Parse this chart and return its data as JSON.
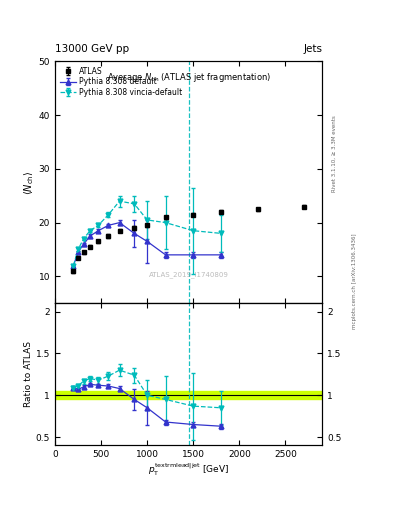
{
  "title_top": "13000 GeV pp",
  "title_right": "Jets",
  "plot_title": "Average N_{ch} (ATLAS jet fragmentation)",
  "ylabel_main": "<N_{ch}>",
  "ylabel_ratio": "Ratio to ATLAS",
  "xlabel": "p_{T}^{textrm{lead|jet}} [GeV]",
  "right_label1": "Rivet 3.1.10, ≥ 3.3M events",
  "right_label2": "mcplots.cern.ch [arXiv:1306.3436]",
  "watermark": "ATLAS_2019_I1740809",
  "vline_x": 1450,
  "atlas_x": [
    200,
    250,
    310,
    380,
    470,
    580,
    700,
    860,
    1000,
    1200,
    1500,
    1800,
    2200,
    2700
  ],
  "atlas_y": [
    11.0,
    13.5,
    14.5,
    15.5,
    16.5,
    17.5,
    18.5,
    19.0,
    19.5,
    21.0,
    21.5,
    22.0,
    22.5,
    23.0
  ],
  "atlas_yerr": [
    0.3,
    0.3,
    0.3,
    0.3,
    0.3,
    0.3,
    0.3,
    0.3,
    0.3,
    0.3,
    0.3,
    0.3,
    0.3,
    0.3
  ],
  "pythia_def_x": [
    200,
    250,
    310,
    380,
    470,
    580,
    700,
    860,
    1000,
    1200,
    1500,
    1800
  ],
  "pythia_def_y": [
    12.0,
    14.5,
    16.0,
    17.5,
    18.5,
    19.5,
    20.0,
    18.0,
    16.5,
    14.0,
    14.0,
    14.0
  ],
  "pythia_def_yerr": [
    0.2,
    0.2,
    0.3,
    0.3,
    0.3,
    0.3,
    0.5,
    2.5,
    4.0,
    0.5,
    0.5,
    0.5
  ],
  "vincia_x": [
    200,
    250,
    310,
    380,
    470,
    580,
    700,
    860,
    1000,
    1200,
    1500,
    1800
  ],
  "vincia_y": [
    12.0,
    15.0,
    17.0,
    18.5,
    19.5,
    21.5,
    24.0,
    23.5,
    20.5,
    20.0,
    18.5,
    18.0
  ],
  "vincia_yerr": [
    0.2,
    0.3,
    0.3,
    0.3,
    0.4,
    0.5,
    1.0,
    1.5,
    3.5,
    5.0,
    8.0,
    3.5
  ],
  "pythia_def_ratio_x": [
    200,
    250,
    310,
    380,
    470,
    580,
    700,
    860,
    1000,
    1200,
    1500,
    1800
  ],
  "pythia_def_ratio_y": [
    1.09,
    1.07,
    1.1,
    1.13,
    1.12,
    1.11,
    1.08,
    0.95,
    0.85,
    0.68,
    0.65,
    0.63
  ],
  "pythia_def_ratio_yerr": [
    0.02,
    0.02,
    0.02,
    0.02,
    0.02,
    0.02,
    0.03,
    0.13,
    0.2,
    0.03,
    0.03,
    0.03
  ],
  "vincia_ratio_x": [
    200,
    250,
    310,
    380,
    470,
    580,
    700,
    860,
    1000,
    1200,
    1500,
    1800
  ],
  "vincia_ratio_y": [
    1.09,
    1.11,
    1.17,
    1.2,
    1.18,
    1.23,
    1.3,
    1.24,
    1.0,
    0.95,
    0.87,
    0.85
  ],
  "vincia_ratio_yerr": [
    0.02,
    0.03,
    0.03,
    0.03,
    0.04,
    0.05,
    0.07,
    0.09,
    0.18,
    0.28,
    0.4,
    0.2
  ],
  "ylim_main": [
    5,
    50
  ],
  "ylim_ratio": [
    0.4,
    2.1
  ],
  "xlim": [
    0,
    2900
  ],
  "atlas_color": "black",
  "pythia_def_color": "#3333cc",
  "vincia_color": "#00bbbb",
  "ref_band_color": "#ccff00",
  "ref_line_color": "black"
}
